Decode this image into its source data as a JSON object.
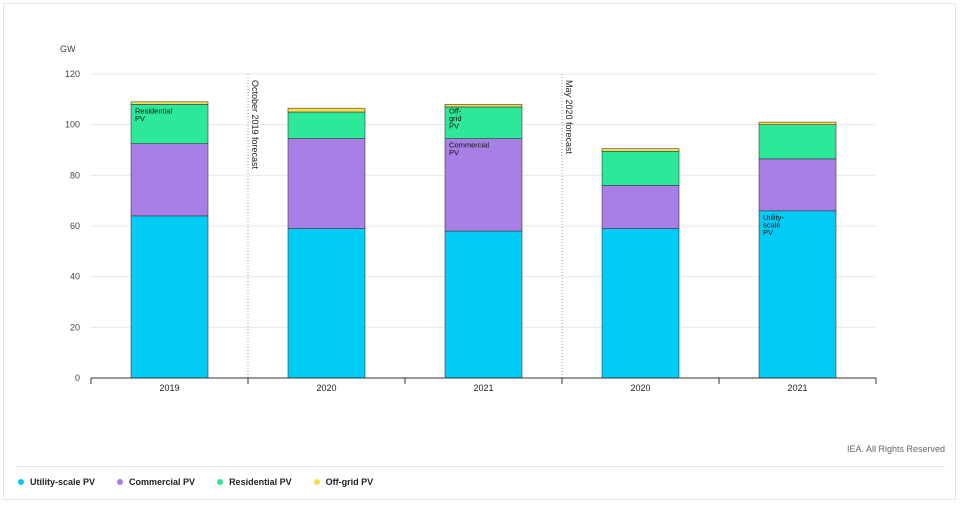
{
  "chart_data": {
    "type": "bar",
    "stacked": true,
    "ylabel": "GW",
    "ylim": [
      0,
      120
    ],
    "yticks": [
      0,
      20,
      40,
      60,
      80,
      100,
      120
    ],
    "categories": [
      "2019",
      "2020",
      "2021",
      "2020",
      "2021"
    ],
    "series": [
      {
        "name": "Utility-scale PV",
        "color": "#00ccf5",
        "values": [
          64,
          59,
          58,
          59,
          66
        ]
      },
      {
        "name": "Commercial PV",
        "color": "#a77fe5",
        "values": [
          28.5,
          35.5,
          36.5,
          17,
          20.5
        ]
      },
      {
        "name": "Residential PV",
        "color": "#2ee89a",
        "values": [
          15.5,
          10.5,
          12.5,
          13.5,
          13.5
        ]
      },
      {
        "name": "Off-grid PV",
        "color": "#f5e04a",
        "values": [
          1,
          1.5,
          1,
          1,
          1
        ]
      }
    ],
    "dividers": [
      {
        "after_index": 0,
        "label": "October 2019 forecast"
      },
      {
        "after_index": 2,
        "label": "May 2020 forecast"
      }
    ],
    "annotations": [
      {
        "bar_index": 0,
        "series": "Residential PV",
        "lines": [
          "Residential",
          "PV"
        ]
      },
      {
        "bar_index": 2,
        "series": "Off-grid PV",
        "lines": [
          "Off-",
          "grid",
          "PV"
        ]
      },
      {
        "bar_index": 2,
        "series": "Commercial PV",
        "lines": [
          "Commercial",
          "PV"
        ]
      },
      {
        "bar_index": 4,
        "series": "Utility-scale PV",
        "lines": [
          "Utility-",
          "scale",
          "PV"
        ]
      }
    ],
    "grid": true,
    "legend_position": "bottom-left"
  },
  "credit": "IEA. All Rights Reserved",
  "legend": [
    {
      "label": "Utility-scale PV",
      "color": "#00ccf5"
    },
    {
      "label": "Commercial PV",
      "color": "#a77fe5"
    },
    {
      "label": "Residential PV",
      "color": "#2ee89a"
    },
    {
      "label": "Off-grid PV",
      "color": "#f5e04a"
    }
  ]
}
